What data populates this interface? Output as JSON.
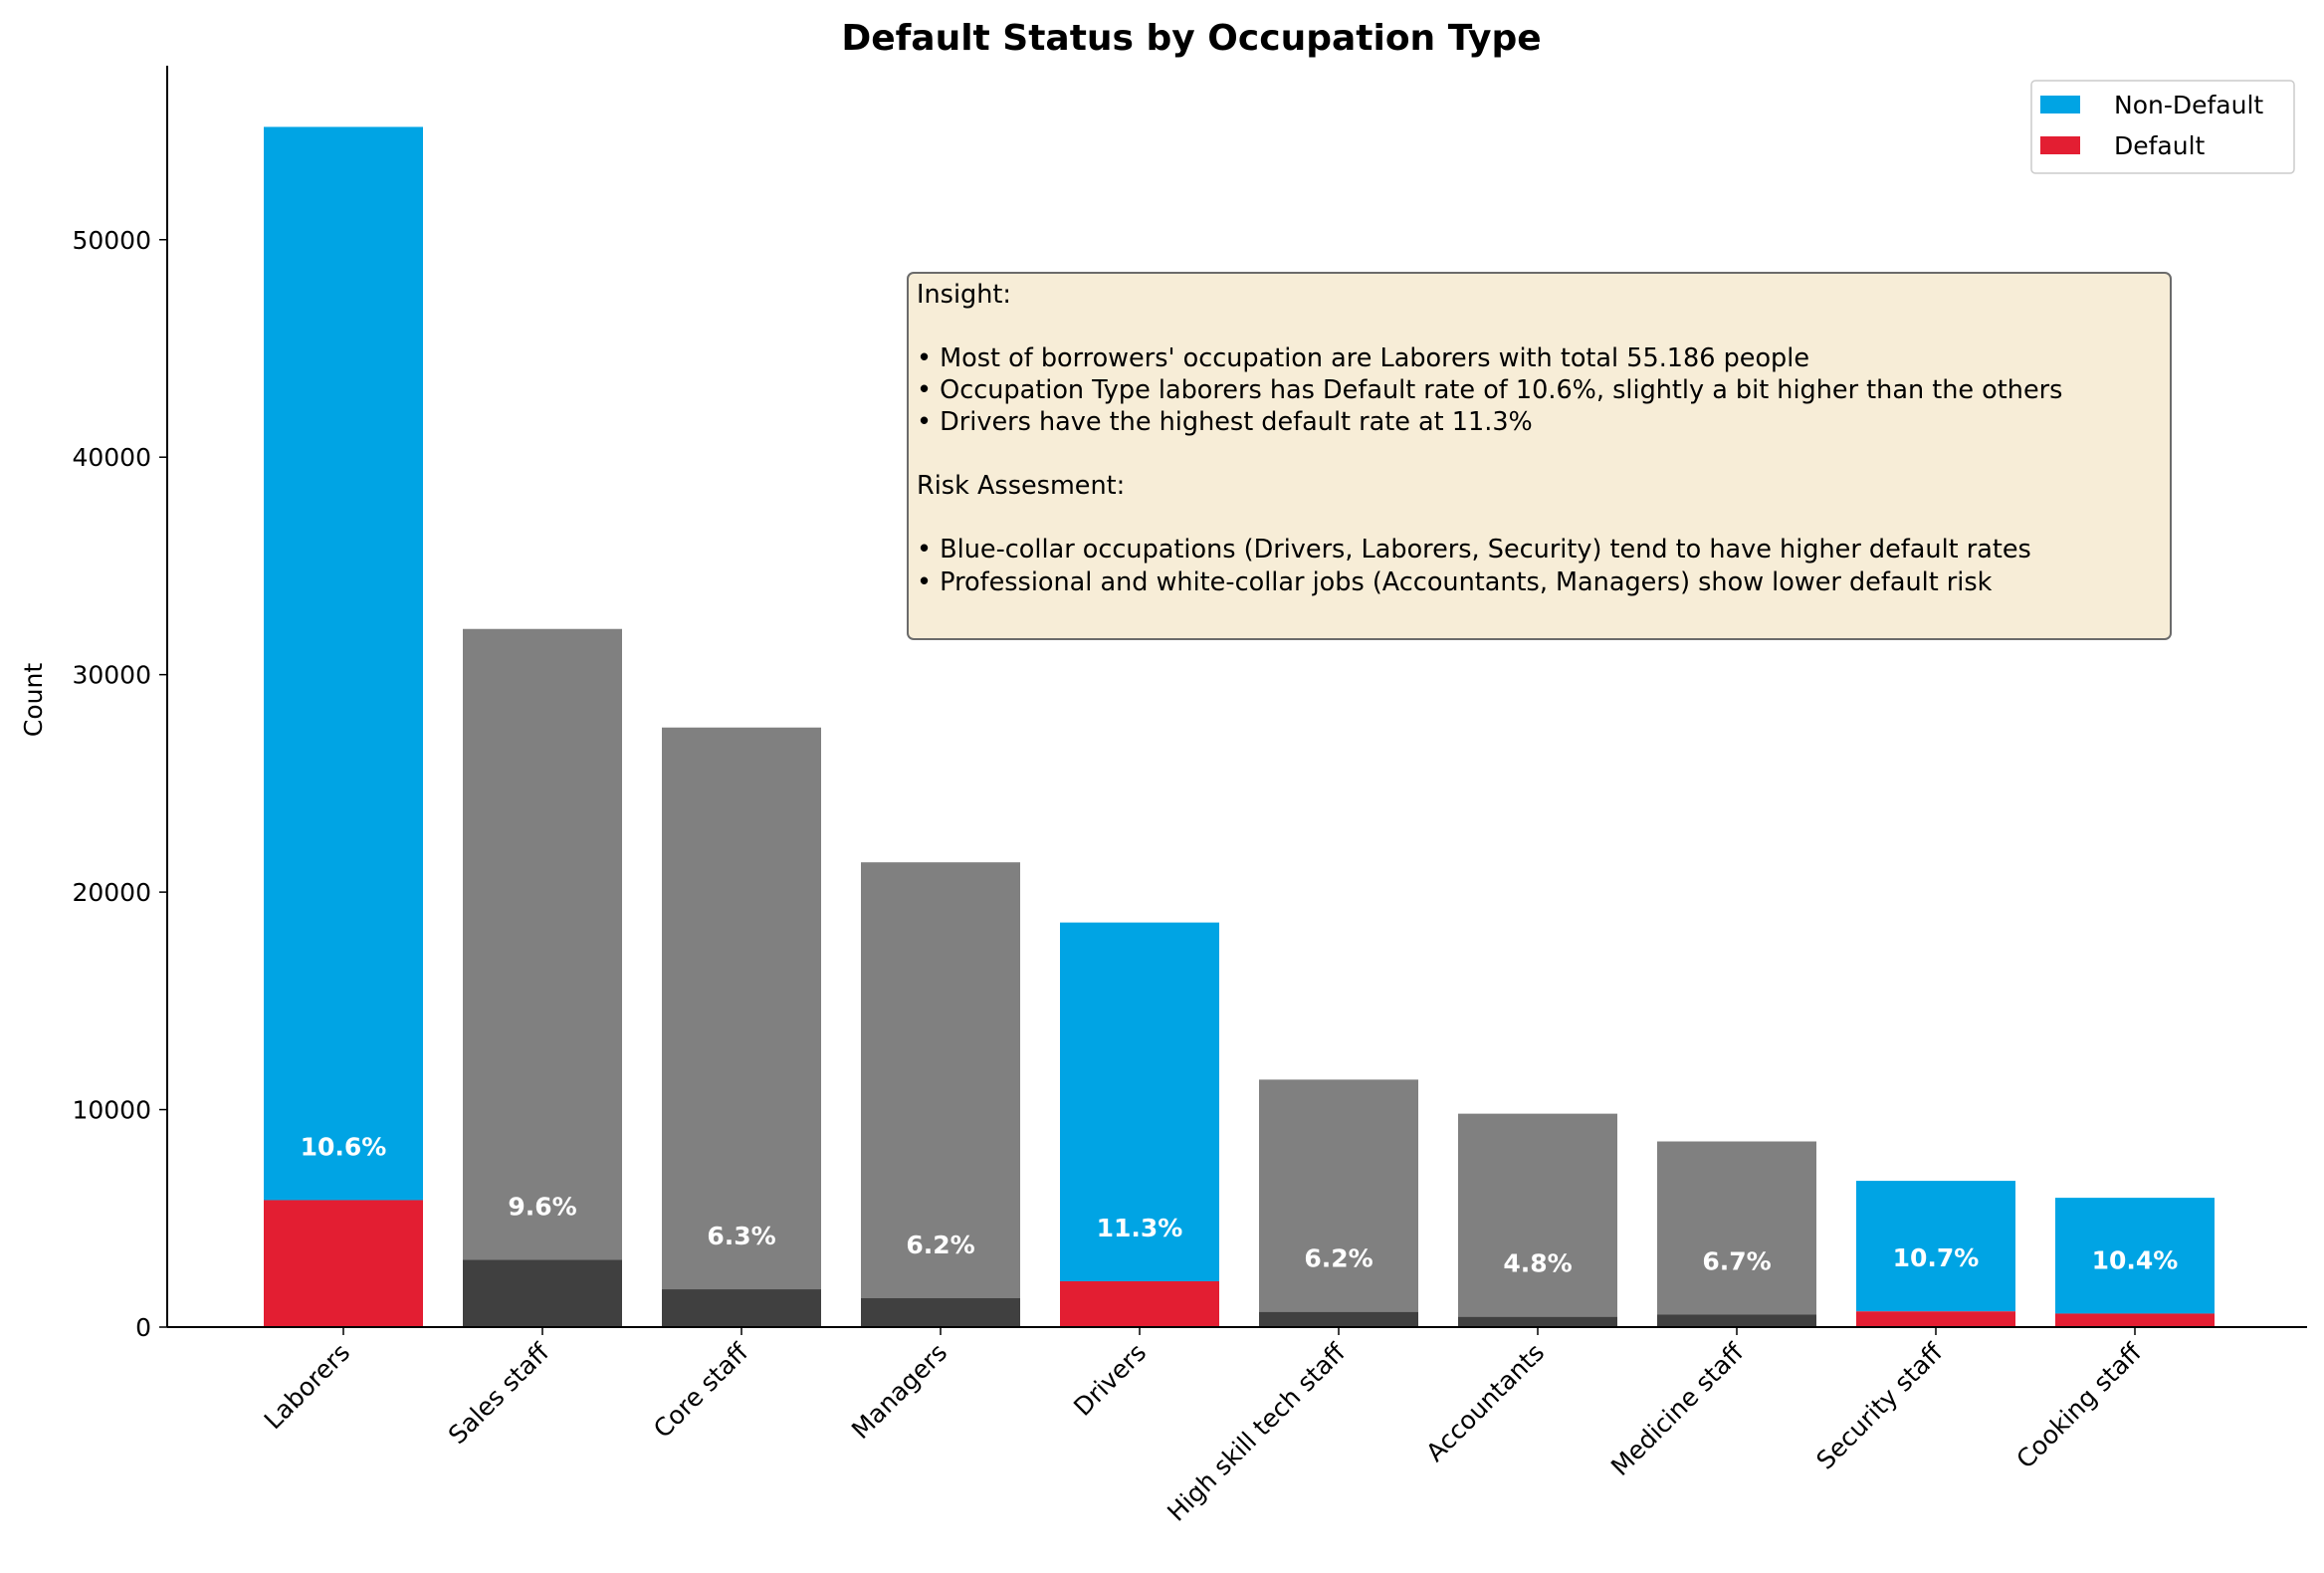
{
  "chart_data": {
    "type": "bar",
    "stacked": true,
    "title": "Default Status by Occupation Type",
    "xlabel": "",
    "ylabel": "Count",
    "ylim": [
      0,
      58000
    ],
    "yticks": [
      0,
      10000,
      20000,
      30000,
      40000,
      50000
    ],
    "categories": [
      "Laborers",
      "Sales staff",
      "Core staff",
      "Managers",
      "Drivers",
      "High skill tech staff",
      "Accountants",
      "Medicine staff",
      "Security staff",
      "Cooking staff"
    ],
    "series": [
      {
        "name": "Default",
        "values": [
          5838,
          3092,
          1738,
          1328,
          2107,
          701,
          474,
          572,
          722,
          621
        ]
      },
      {
        "name": "Non-Default",
        "values": [
          49348,
          29010,
          25832,
          20043,
          16496,
          10679,
          9339,
          7965,
          6003,
          5325
        ]
      }
    ],
    "default_rate_labels": [
      "10.6%",
      "9.6%",
      "6.3%",
      "6.2%",
      "11.3%",
      "6.2%",
      "4.8%",
      "6.7%",
      "10.7%",
      "10.4%"
    ],
    "highlighted": [
      true,
      false,
      false,
      false,
      true,
      false,
      false,
      false,
      true,
      true
    ],
    "colors": {
      "non_default": "#00a4e4",
      "default": "#e31e32",
      "muted_non_default": "#808080",
      "muted_default": "#404040"
    },
    "legend": {
      "position": "top-right",
      "entries": [
        "Non-Default",
        "Default"
      ]
    },
    "grid": false,
    "annotation": {
      "lines": [
        "Insight:",
        "",
        "• Most of borrowers' occupation are Laborers with total 55.186 people",
        "• Occupation Type laborers has Default rate of 10.6%, slightly a bit higher than the others",
        "• Drivers have the highest default rate at 11.3%",
        "",
        "Risk Assesment:",
        "",
        "• Blue-collar occupations (Drivers, Laborers, Security) tend to have higher default rates",
        "• Professional and white-collar jobs (Accountants, Managers) show lower default risk"
      ]
    }
  }
}
